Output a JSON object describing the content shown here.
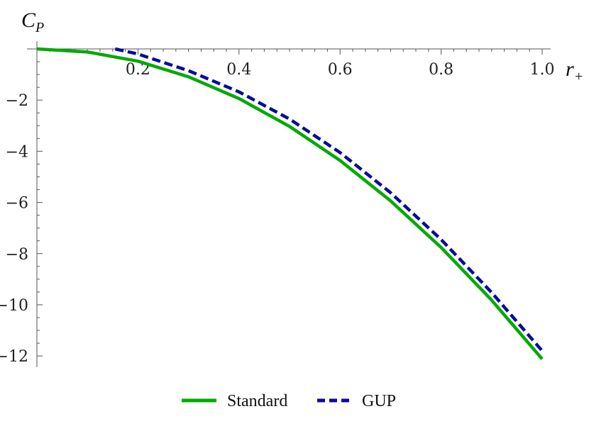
{
  "chart_data": {
    "type": "line",
    "title": "",
    "xlabel": {
      "main": "r",
      "sub": "+"
    },
    "ylabel": {
      "main": "C",
      "sub": "P"
    },
    "xlim": [
      0.0,
      1.0
    ],
    "ylim": [
      -12.3,
      0.0
    ],
    "x_ticks": [
      0.2,
      0.4,
      0.6,
      0.8,
      1.0
    ],
    "x_tick_labels": [
      "0.2",
      "0.4",
      "0.6",
      "0.8",
      "1.0"
    ],
    "y_ticks": [
      -2,
      -4,
      -6,
      -8,
      -10,
      -12
    ],
    "y_tick_labels": [
      "−2",
      "−4",
      "−6",
      "−8",
      "−10",
      "−12"
    ],
    "grid": false,
    "legend_position": "bottom-center",
    "series": [
      {
        "name": "Standard",
        "color": "#00aa00",
        "style": "solid",
        "x": [
          0.0,
          0.1,
          0.2,
          0.3,
          0.4,
          0.5,
          0.6,
          0.7,
          0.8,
          0.9,
          1.0
        ],
        "y": [
          0.0,
          -0.12,
          -0.48,
          -1.09,
          -1.94,
          -3.03,
          -4.36,
          -5.94,
          -7.76,
          -9.82,
          -12.12
        ]
      },
      {
        "name": "GUP",
        "color": "#0a0a9a",
        "style": "dashed",
        "x": [
          0.155,
          0.2,
          0.3,
          0.4,
          0.5,
          0.6,
          0.7,
          0.8,
          0.9,
          1.0
        ],
        "y": [
          0.0,
          -0.2,
          -0.85,
          -1.68,
          -2.74,
          -4.05,
          -5.62,
          -7.45,
          -9.52,
          -11.8
        ]
      }
    ]
  }
}
